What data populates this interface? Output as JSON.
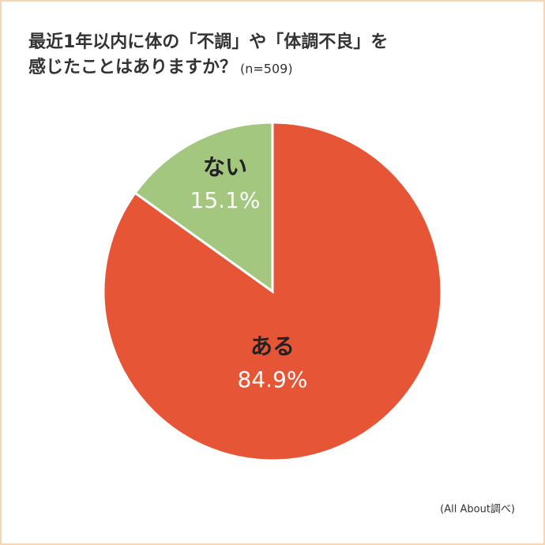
{
  "chart_data": {
    "type": "pie",
    "title": [
      "最近1年以内に体の「不調」や「体調不良」を",
      "感じたことはありますか？"
    ],
    "note": "(n=509)",
    "source": "(All About調べ)",
    "categories": [
      "ある",
      "ない"
    ],
    "values": [
      84.9,
      15.1
    ],
    "value_labels": [
      "84.9%",
      "15.1%"
    ],
    "colors": [
      "#e65535",
      "#a3c77e"
    ]
  }
}
